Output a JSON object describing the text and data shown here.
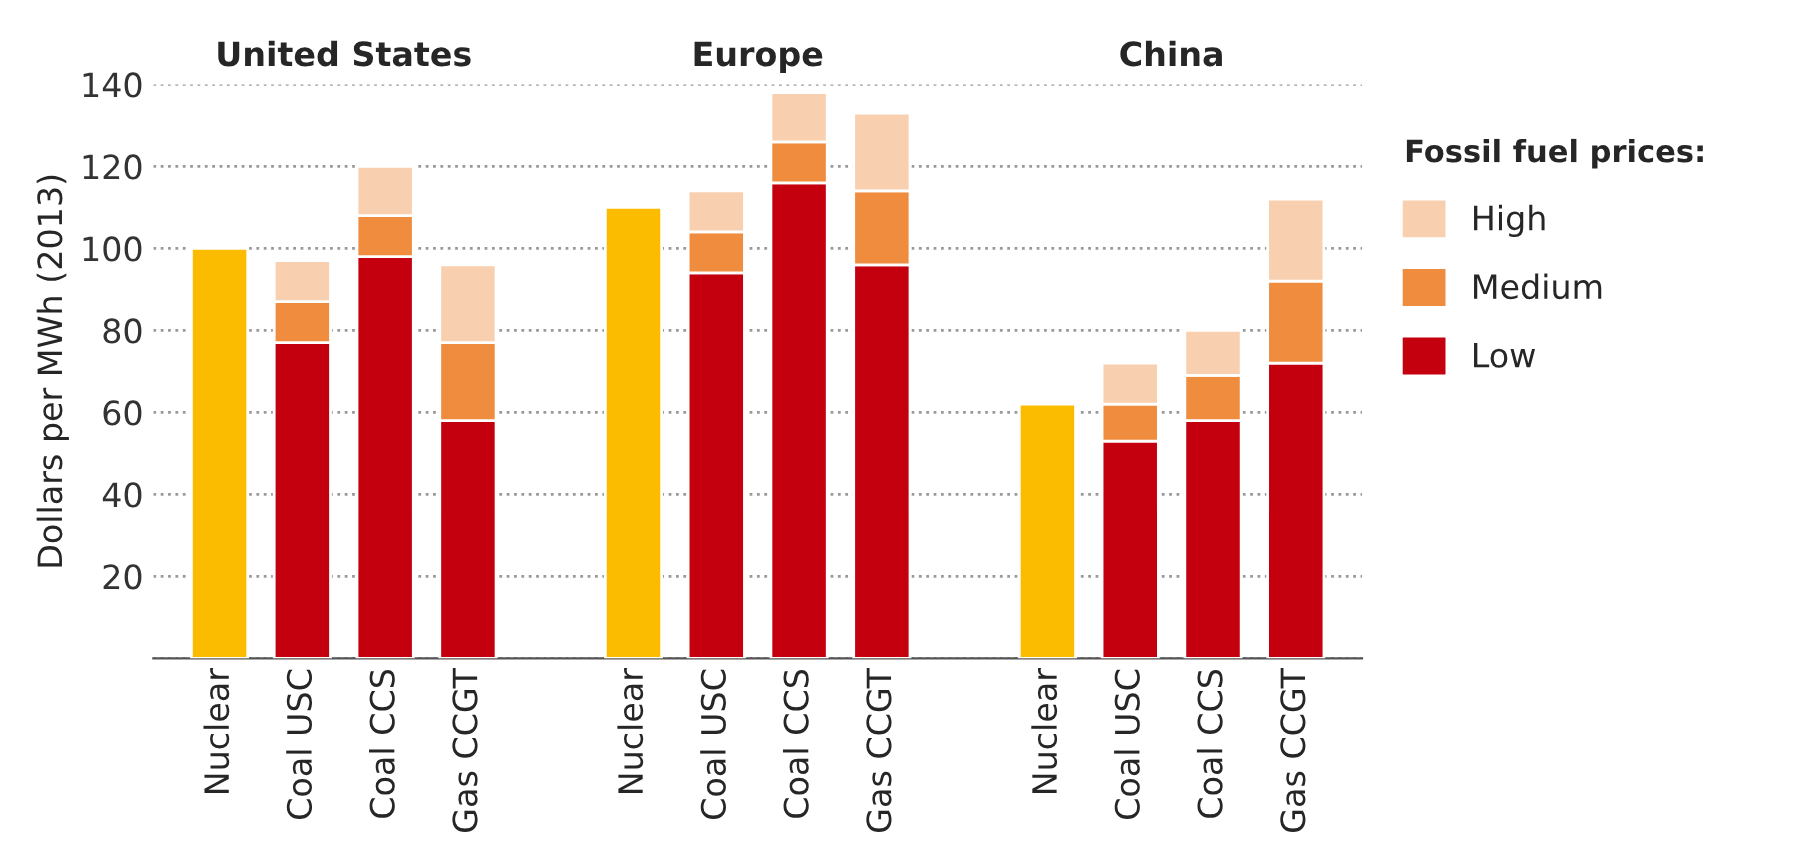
{
  "chart_data": {
    "type": "bar",
    "stacked": true,
    "ylabel": "Dollars per MWh (2013)",
    "legend_title": "Fossil fuel prices:",
    "annotations": [
      "United States",
      "Europe",
      "China"
    ],
    "categories": [
      "Nuclear",
      "Coal USC",
      "Coal CCS",
      "Gas CCGT",
      null,
      "Nuclear",
      "Coal USC",
      "Coal CCS",
      "Gas CCGT",
      null,
      "Nuclear",
      "Coal USC",
      "Coal CCS",
      "Gas CCGT"
    ],
    "series": [
      {
        "color": "#fbbc00",
        "values": [
          100,
          null,
          null,
          null,
          null,
          110,
          null,
          null,
          null,
          null,
          62,
          null,
          null,
          null
        ]
      },
      {
        "name": "Low",
        "color": "#c4000f",
        "values": [
          null,
          77,
          98,
          58,
          null,
          null,
          94,
          116,
          96,
          null,
          null,
          53,
          58,
          72
        ]
      },
      {
        "name": "Medium",
        "color": "#ef8c3e",
        "values": [
          null,
          10,
          10,
          19,
          null,
          null,
          10,
          10,
          18,
          null,
          null,
          9,
          11,
          20
        ]
      },
      {
        "name": "High",
        "color": "#f8d0b0",
        "values": [
          null,
          10,
          12,
          19,
          null,
          null,
          10,
          12,
          19,
          null,
          null,
          10,
          11,
          20
        ]
      }
    ],
    "ylim": [
      0,
      140
    ],
    "yticks": [
      {
        "value": 0,
        "label": null
      },
      20,
      40,
      60,
      80,
      100,
      120,
      140
    ],
    "grid": "y",
    "legend": "right"
  }
}
